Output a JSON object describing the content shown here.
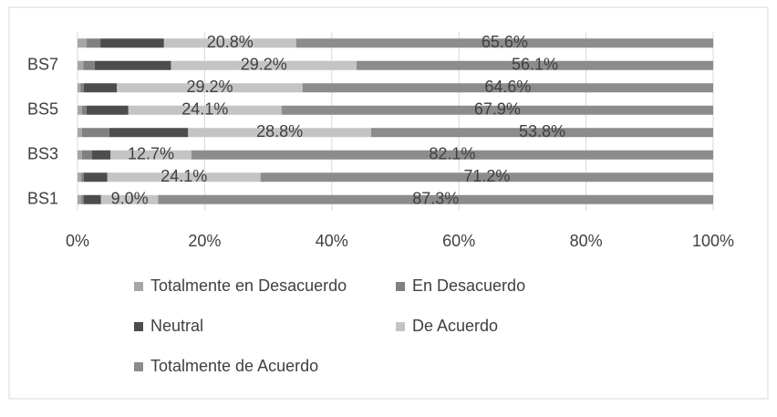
{
  "chart_data": {
    "type": "stacked-barh",
    "categories": [
      "BS1",
      null,
      "BS3",
      null,
      "BS5",
      null,
      "BS7",
      null
    ],
    "series": [
      {
        "name": "Totalmente en Desacuerdo",
        "color": "#a6a6a6",
        "values": [
          0.6,
          0.6,
          0.7,
          0.7,
          0.7,
          0.5,
          0.9,
          1.4
        ]
      },
      {
        "name": "En Desacuerdo",
        "color": "#808080",
        "values": [
          0.4,
          0.4,
          1.6,
          4.3,
          0.7,
          0.5,
          1.8,
          2.2
        ]
      },
      {
        "name": "Neutral",
        "color": "#4d4d4d",
        "values": [
          2.7,
          3.7,
          2.9,
          12.4,
          6.6,
          5.2,
          12.0,
          10.0
        ]
      },
      {
        "name": "De Acuerdo",
        "color": "#c4c4c4",
        "values": [
          9.0,
          24.1,
          12.7,
          28.8,
          24.1,
          29.2,
          29.2,
          20.8
        ],
        "value_labels": [
          "9.0%",
          "24.1%",
          "12.7%",
          "28.8%",
          "24.1%",
          "29.2%",
          "29.2%",
          "20.8%"
        ]
      },
      {
        "name": "Totalmente de Acuerdo",
        "color": "#8c8c8c",
        "values": [
          87.3,
          71.2,
          82.1,
          53.8,
          67.9,
          64.6,
          56.1,
          65.6
        ],
        "value_labels": [
          "87.3%",
          "71.2%",
          "82.1%",
          "53.8%",
          "67.9%",
          "64.6%",
          "56.1%",
          "65.6%"
        ]
      }
    ],
    "xlim": [
      0,
      100
    ],
    "xticks": [
      {
        "value": 0,
        "label": "0%"
      },
      {
        "value": 20,
        "label": "20%"
      },
      {
        "value": 40,
        "label": "40%"
      },
      {
        "value": 60,
        "label": "60%"
      },
      {
        "value": 80,
        "label": "80%"
      },
      {
        "value": 100,
        "label": "100%"
      }
    ],
    "grid": true,
    "legend": "bottom"
  }
}
